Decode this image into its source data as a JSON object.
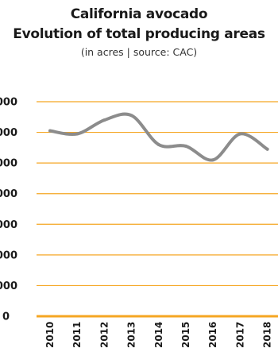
{
  "chart_data": {
    "type": "line",
    "title_lines": [
      "California avocado",
      "Evolution of total producing areas"
    ],
    "subtitle": "(in acres | source: CAC)",
    "x": [
      "2010",
      "2011",
      "2012",
      "2013",
      "2014",
      "2015",
      "2016",
      "2017",
      "2018"
    ],
    "series": [
      {
        "values": [
          60500,
          59500,
          64000,
          65500,
          56000,
          55500,
          51000,
          59500,
          54500
        ]
      }
    ],
    "y_ticks": [
      {
        "value": 0,
        "label": "0"
      },
      {
        "value": 10000,
        "label": "000"
      },
      {
        "value": 20000,
        "label": "000"
      },
      {
        "value": 30000,
        "label": "000"
      },
      {
        "value": 40000,
        "label": "000"
      },
      {
        "value": 50000,
        "label": "000"
      },
      {
        "value": 60000,
        "label": "000"
      },
      {
        "value": 70000,
        "label": "000"
      }
    ],
    "ylim": [
      0,
      70000
    ],
    "grid": true,
    "colors": {
      "line": "#8c8c8c",
      "grid": "#f5a623",
      "baseline": "#f5a623"
    }
  }
}
